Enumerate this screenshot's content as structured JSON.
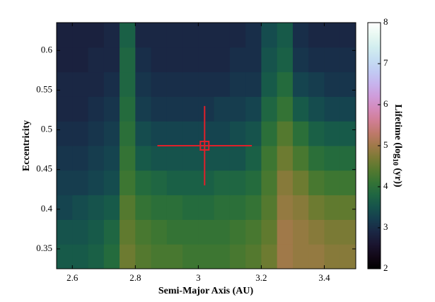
{
  "chart_data": {
    "type": "heatmap",
    "x_label": "Semi-Major Axis (AU)",
    "y_label": "Eccentricity",
    "colorbar_label": {
      "prefix": "Lifetime (log",
      "subscript": "10",
      "suffix": " (yr))"
    },
    "colormap": "cubehelix",
    "xlim": [
      2.55,
      3.5
    ],
    "xticks": [
      2.6,
      2.8,
      3,
      3.2,
      3.4
    ],
    "ylim": [
      0.325,
      0.635
    ],
    "yticks": [
      0.35,
      0.4,
      0.45,
      0.5,
      0.55,
      0.6
    ],
    "clim": [
      2,
      8
    ],
    "cticks": [
      2,
      3,
      4,
      5,
      6,
      7,
      8
    ],
    "xbins": [
      2.55,
      2.6,
      2.65,
      2.7,
      2.75,
      2.8,
      2.85,
      2.9,
      2.95,
      3.0,
      3.05,
      3.1,
      3.15,
      3.2,
      3.25,
      3.3,
      3.35,
      3.4,
      3.45,
      3.5
    ],
    "ybins": [
      0.325,
      0.356,
      0.387,
      0.418,
      0.449,
      0.48,
      0.511,
      0.542,
      0.573,
      0.604,
      0.635
    ],
    "z": [
      [
        3.6,
        3.6,
        3.7,
        3.9,
        4.6,
        4.4,
        4.3,
        4.3,
        4.2,
        4.2,
        4.2,
        4.3,
        4.4,
        4.6,
        5.0,
        4.9,
        4.9,
        4.8,
        4.8
      ],
      [
        3.5,
        3.5,
        3.6,
        3.8,
        4.5,
        4.3,
        4.2,
        4.1,
        4.1,
        4.1,
        4.1,
        4.2,
        4.3,
        4.5,
        5.0,
        4.9,
        4.8,
        4.7,
        4.7
      ],
      [
        3.3,
        3.4,
        3.5,
        3.6,
        4.4,
        4.1,
        4.0,
        4.0,
        3.9,
        3.9,
        4.0,
        4.0,
        4.1,
        4.4,
        4.9,
        4.8,
        4.6,
        4.5,
        4.5
      ],
      [
        3.2,
        3.2,
        3.3,
        3.4,
        4.2,
        3.9,
        3.8,
        3.7,
        3.7,
        3.7,
        3.8,
        3.8,
        3.9,
        4.3,
        4.8,
        4.6,
        4.3,
        4.2,
        4.2
      ],
      [
        3.1,
        3.1,
        3.2,
        3.3,
        4.1,
        3.6,
        3.5,
        3.5,
        3.5,
        3.5,
        3.5,
        3.5,
        3.7,
        4.2,
        4.6,
        4.3,
        4.0,
        3.9,
        3.9
      ],
      [
        3.0,
        3.0,
        3.1,
        3.2,
        4.0,
        3.4,
        3.3,
        3.3,
        3.3,
        3.3,
        3.3,
        3.4,
        3.5,
        4.0,
        4.4,
        4.0,
        3.7,
        3.6,
        3.6
      ],
      [
        2.9,
        2.9,
        3.0,
        3.1,
        3.9,
        3.2,
        3.1,
        3.1,
        3.1,
        3.1,
        3.2,
        3.2,
        3.3,
        3.8,
        4.1,
        3.6,
        3.4,
        3.3,
        3.3
      ],
      [
        2.9,
        2.9,
        2.9,
        3.0,
        3.8,
        3.1,
        3.0,
        3.0,
        3.0,
        3.0,
        3.0,
        3.1,
        3.1,
        3.6,
        3.9,
        3.3,
        3.2,
        3.1,
        3.1
      ],
      [
        2.8,
        2.8,
        2.9,
        2.9,
        3.8,
        3.0,
        2.9,
        2.9,
        2.9,
        2.9,
        2.9,
        3.0,
        3.0,
        3.5,
        3.7,
        3.1,
        3.0,
        3.0,
        3.0
      ],
      [
        2.8,
        2.8,
        2.8,
        2.9,
        3.7,
        2.9,
        2.9,
        2.9,
        2.9,
        2.9,
        2.9,
        2.9,
        3.0,
        3.4,
        3.6,
        3.0,
        2.9,
        2.9,
        2.9
      ]
    ],
    "marker": {
      "x": 3.02,
      "y": 0.48,
      "xerr": 0.15,
      "yerr": 0.05,
      "color": "#e0202a"
    }
  }
}
